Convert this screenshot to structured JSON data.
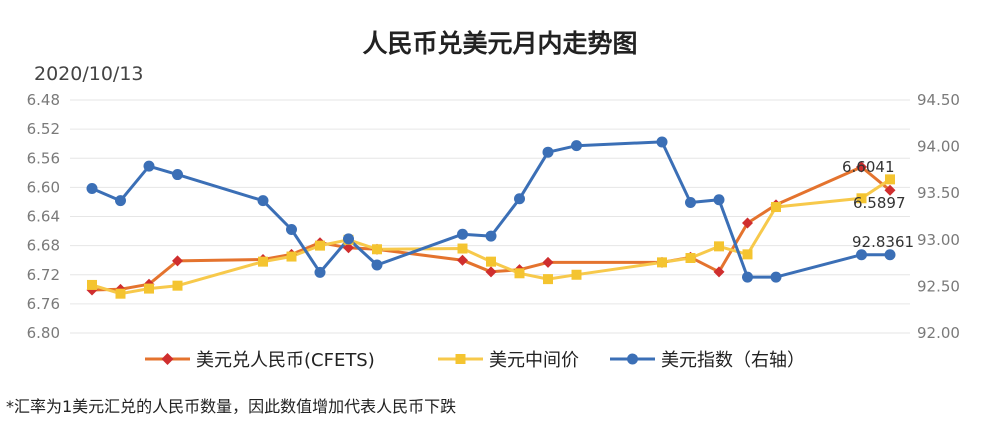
{
  "chart_data": {
    "type": "line",
    "title": "人民币兑美元月内走势图",
    "subtitle": "2020/10/13",
    "x_index": [
      0,
      1,
      2,
      3,
      4,
      5,
      6,
      7,
      8,
      9,
      10,
      11,
      12,
      13,
      14,
      15,
      16,
      17,
      18,
      19,
      20,
      21,
      22,
      23,
      24,
      25,
      26
    ],
    "left_axis": {
      "ticks": [
        "6.48",
        "6.52",
        "6.56",
        "6.60",
        "6.64",
        "6.68",
        "6.72",
        "6.76",
        "6.80"
      ],
      "ylim": [
        6.48,
        6.8
      ],
      "inverted": true
    },
    "right_axis": {
      "ticks": [
        "94.50",
        "94.00",
        "93.50",
        "93.00",
        "92.50",
        "92.00"
      ],
      "ylim": [
        92.0,
        94.5
      ]
    },
    "series": [
      {
        "name": "美元兑人民币(CFETS)",
        "axis": "left",
        "color": "#e4732e",
        "marker": "diamond",
        "points": [
          [
            0,
            6.741
          ],
          [
            1,
            6.74
          ],
          [
            2,
            6.733
          ],
          [
            3,
            6.701
          ],
          [
            4,
            6.699
          ],
          [
            5,
            6.692
          ],
          [
            6,
            6.676
          ],
          [
            7,
            6.683
          ],
          [
            8,
            6.685
          ],
          [
            9,
            6.7
          ],
          [
            10,
            6.716
          ],
          [
            11,
            6.713
          ],
          [
            12,
            6.703
          ],
          [
            13,
            6.703
          ],
          [
            14,
            6.696
          ],
          [
            15,
            6.716
          ],
          [
            16,
            6.649
          ],
          [
            17,
            6.624
          ],
          [
            18,
            6.572
          ],
          [
            19,
            6.604
          ]
        ],
        "x_positions": [
          0,
          1,
          2,
          3,
          6,
          7,
          8,
          9,
          10,
          13,
          14,
          15,
          16,
          20,
          21,
          22,
          23,
          24,
          27,
          28
        ]
      },
      {
        "name": "美元中间价",
        "axis": "left",
        "color": "#f7c94b",
        "marker": "square",
        "points": [
          [
            0,
            6.734
          ],
          [
            1,
            6.746
          ],
          [
            2,
            6.739
          ],
          [
            3,
            6.735
          ],
          [
            4,
            6.702
          ],
          [
            5,
            6.695
          ],
          [
            6,
            6.68
          ],
          [
            7,
            6.672
          ],
          [
            8,
            6.685
          ],
          [
            9,
            6.684
          ],
          [
            10,
            6.702
          ],
          [
            11,
            6.718
          ],
          [
            12,
            6.726
          ],
          [
            13,
            6.72
          ],
          [
            14,
            6.703
          ],
          [
            15,
            6.697
          ],
          [
            16,
            6.681
          ],
          [
            17,
            6.692
          ],
          [
            18,
            6.627
          ],
          [
            19,
            6.615
          ],
          [
            20,
            6.589
          ]
        ],
        "x_positions": [
          0,
          1,
          2,
          3,
          6,
          7,
          8,
          9,
          10,
          13,
          14,
          15,
          16,
          17,
          20,
          21,
          22,
          23,
          24,
          27,
          28
        ]
      },
      {
        "name": "美元指数（右轴）",
        "axis": "right",
        "color": "#3b6fb6",
        "marker": "circle",
        "points": [
          [
            0,
            93.55
          ],
          [
            1,
            93.42
          ],
          [
            2,
            93.79
          ],
          [
            3,
            93.7
          ],
          [
            4,
            93.42
          ],
          [
            5,
            93.11
          ],
          [
            6,
            92.65
          ],
          [
            7,
            93.01
          ],
          [
            8,
            92.73
          ],
          [
            9,
            93.06
          ],
          [
            10,
            93.04
          ],
          [
            11,
            93.44
          ],
          [
            12,
            93.94
          ],
          [
            13,
            94.01
          ],
          [
            14,
            94.05
          ],
          [
            15,
            93.4
          ],
          [
            16,
            93.43
          ],
          [
            17,
            92.6
          ],
          [
            18,
            92.6
          ],
          [
            19,
            92.84
          ],
          [
            20,
            92.84
          ]
        ],
        "x_positions": [
          0,
          1,
          2,
          3,
          6,
          7,
          8,
          9,
          10,
          13,
          14,
          15,
          16,
          17,
          20,
          21,
          22,
          23,
          24,
          27,
          28
        ]
      }
    ],
    "data_labels": [
      "6.6041",
      "6.5897",
      "92.8361"
    ],
    "legend": {
      "position": "bottom",
      "items": [
        "美元兑人民币(CFETS)",
        "美元中间价",
        "美元指数（右轴）"
      ]
    },
    "grid": true
  },
  "footnote": "*汇率为1美元汇兑的人民币数量，因此数值增加代表人民币下跌",
  "colors": {
    "cfets": "#e4732e",
    "midrate": "#f7c94b",
    "dxy": "#3b6fb6"
  }
}
